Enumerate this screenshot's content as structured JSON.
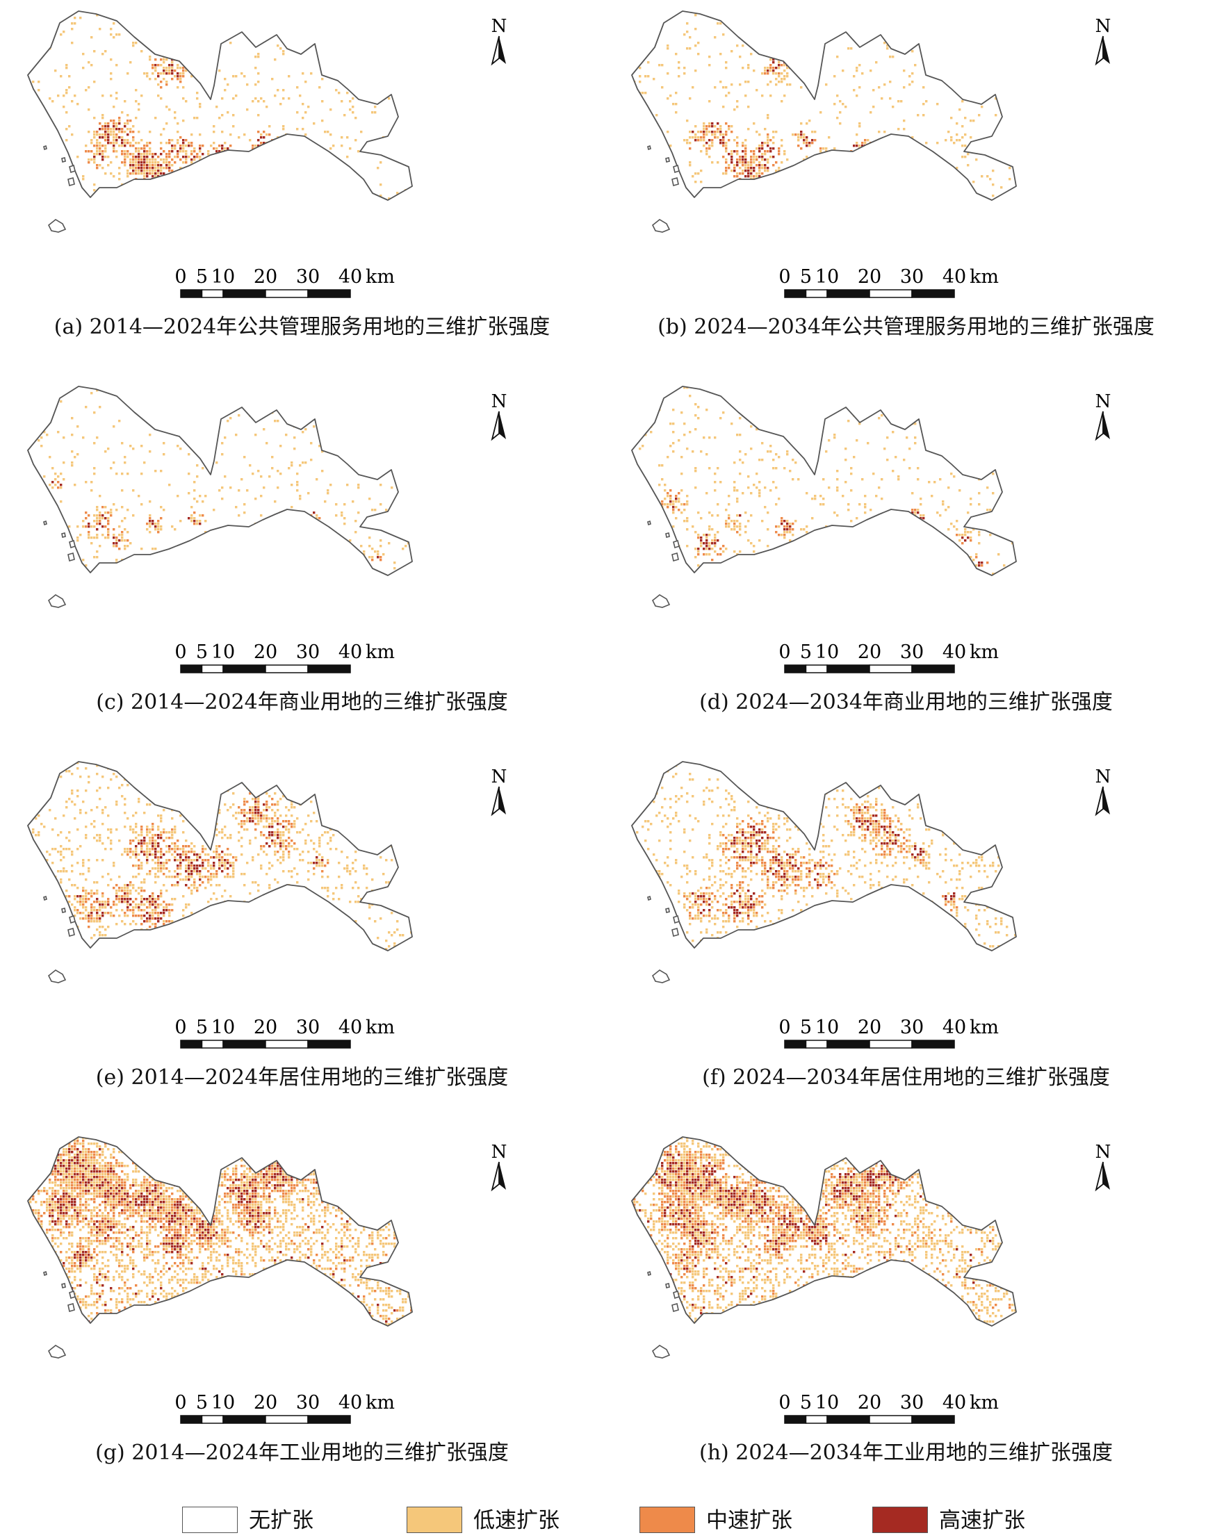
{
  "map": {
    "north_label": "N",
    "scale_bar": {
      "ticks": [
        "0",
        "5",
        "10",
        "20",
        "30",
        "40"
      ],
      "unit": "km"
    },
    "panels": [
      {
        "id": "a",
        "caption": "(a) 2014—2024年公共管理服务用地的三维扩张强度"
      },
      {
        "id": "b",
        "caption": "(b) 2024—2034年公共管理服务用地的三维扩张强度"
      },
      {
        "id": "c",
        "caption": "(c) 2014—2024年商业用地的三维扩张强度"
      },
      {
        "id": "d",
        "caption": "(d) 2024—2034年商业用地的三维扩张强度"
      },
      {
        "id": "e",
        "caption": "(e) 2014—2024年居住用地的三维扩张强度"
      },
      {
        "id": "f",
        "caption": "(f) 2024—2034年居住用地的三维扩张强度"
      },
      {
        "id": "g",
        "caption": "(g) 2014—2024年工业用地的三维扩张强度"
      },
      {
        "id": "h",
        "caption": "(h) 2024—2034年工业用地的三维扩张强度"
      }
    ],
    "legend": [
      {
        "label": "无扩张",
        "color": "#ffffff"
      },
      {
        "label": "低速扩张",
        "color": "#f5c77a"
      },
      {
        "label": "中速扩张",
        "color": "#ee8a4a"
      },
      {
        "label": "高速扩张",
        "color": "#a52a22"
      }
    ],
    "outline_color": "#555555"
  }
}
